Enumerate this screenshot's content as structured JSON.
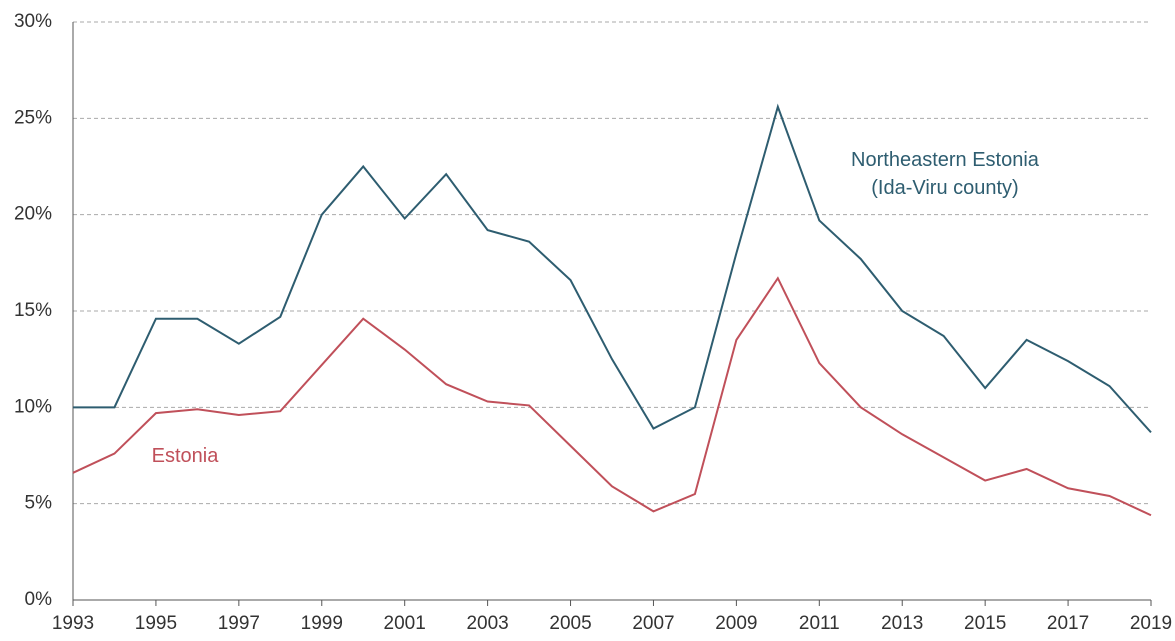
{
  "chart_data": {
    "type": "line",
    "x": [
      1993,
      1994,
      1995,
      1996,
      1997,
      1998,
      1999,
      2000,
      2001,
      2002,
      2003,
      2004,
      2005,
      2006,
      2007,
      2008,
      2009,
      2010,
      2011,
      2012,
      2013,
      2014,
      2015,
      2016,
      2017,
      2018,
      2019
    ],
    "series": [
      {
        "name": "Northeastern Estonia (Ida-Viru county)",
        "color": "#2e5d70",
        "values": [
          10,
          10,
          14.6,
          14.6,
          13.3,
          14.7,
          20,
          22.5,
          19.8,
          22.1,
          19.2,
          18.6,
          16.6,
          12.5,
          8.9,
          10,
          18,
          25.6,
          19.7,
          17.7,
          15,
          13.7,
          11,
          13.5,
          12.4,
          11.1,
          8.7
        ]
      },
      {
        "name": "Estonia",
        "color": "#c0505a",
        "values": [
          6.6,
          7.6,
          9.7,
          9.9,
          9.6,
          9.8,
          12.2,
          14.6,
          13,
          11.2,
          10.3,
          10.1,
          8,
          5.9,
          4.6,
          5.5,
          13.5,
          16.7,
          12.3,
          10,
          8.6,
          7.4,
          6.2,
          6.8,
          5.8,
          5.4,
          4.4
        ]
      }
    ],
    "xlim": [
      1993,
      2019
    ],
    "xticks": [
      1993,
      1995,
      1997,
      1999,
      2001,
      2003,
      2005,
      2007,
      2009,
      2011,
      2013,
      2015,
      2017,
      2019
    ],
    "ylim": [
      0,
      30
    ],
    "yticks": [
      {
        "value": 0,
        "label": "0%"
      },
      {
        "value": 5,
        "label": "5%"
      },
      {
        "value": 10,
        "label": "10%"
      },
      {
        "value": 15,
        "label": "15%"
      },
      {
        "value": 20,
        "label": "20%"
      },
      {
        "value": 25,
        "label": "25%"
      },
      {
        "value": 30,
        "label": "30%"
      }
    ],
    "grid": true
  }
}
